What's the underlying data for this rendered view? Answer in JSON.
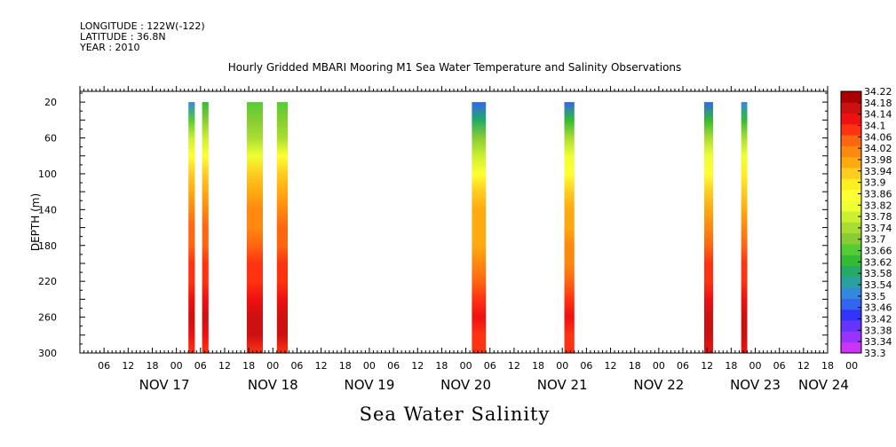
{
  "header": {
    "longitude": "LONGITUDE : 122W(-122)",
    "latitude": "LATITUDE : 36.8N",
    "year": "YEAR : 2010"
  },
  "title": "Hourly Gridded MBARI Mooring M1 Sea Water Temperature and Salinity Observations",
  "bottom_title": "Sea Water Salinity",
  "chart_data": {
    "type": "heatmap",
    "variable": "Sea Water Salinity",
    "ylabel": "DEPTH (m)",
    "ylim": [
      300,
      8
    ],
    "yticks": [
      20,
      60,
      100,
      140,
      180,
      220,
      260,
      300
    ],
    "xlim_hours": [
      0,
      186
    ],
    "hour_tick_labels": [
      "06",
      "12",
      "18",
      "00",
      "06",
      "12",
      "18",
      "00",
      "06",
      "12",
      "18",
      "00",
      "06",
      "12",
      "18",
      "00",
      "06",
      "12",
      "18",
      "00",
      "06",
      "12",
      "18",
      "00",
      "06",
      "12",
      "18",
      "00",
      "06",
      "12",
      "18",
      "00"
    ],
    "day_labels": [
      "NOV 17",
      "NOV 18",
      "NOV 19",
      "NOV 20",
      "NOV 21",
      "NOV 22",
      "NOV 23",
      "NOV 24"
    ],
    "colorbar": {
      "levels": [
        33.3,
        33.34,
        33.38,
        33.42,
        33.46,
        33.5,
        33.54,
        33.58,
        33.62,
        33.66,
        33.7,
        33.74,
        33.78,
        33.82,
        33.86,
        33.9,
        33.94,
        33.98,
        34.02,
        34.06,
        34.1,
        34.14,
        34.18,
        34.22
      ],
      "labels": [
        "33.3",
        "33.34",
        "33.38",
        "33.42",
        "33.46",
        "33.5",
        "33.54",
        "33.58",
        "33.62",
        "33.66",
        "33.7",
        "33.74",
        "33.78",
        "33.82",
        "33.86",
        "33.9",
        "33.94",
        "33.98",
        "34.02",
        "34.06",
        "34.1",
        "34.14",
        "34.18",
        "34.22"
      ],
      "colors": [
        "#cc33ff",
        "#9933ff",
        "#6633ff",
        "#3333ff",
        "#3366ee",
        "#3388dd",
        "#2aa0a0",
        "#22aa66",
        "#33bb33",
        "#55cc33",
        "#88cc33",
        "#aadd33",
        "#ccee33",
        "#eeff33",
        "#ffff33",
        "#ffee22",
        "#ffcc22",
        "#ffaa11",
        "#ff8811",
        "#ff6611",
        "#ff3311",
        "#ee1111",
        "#cc1111",
        "#aa0000"
      ]
    },
    "profile_depths": [
      20,
      40,
      60,
      80,
      100,
      120,
      140,
      160,
      180,
      200,
      220,
      240,
      260,
      280,
      300
    ],
    "columns": [
      {
        "start_hour": 27,
        "end_hour": 28.6,
        "values": [
          33.5,
          33.66,
          33.78,
          33.86,
          33.94,
          34.0,
          34.04,
          34.06,
          34.08,
          34.1,
          34.12,
          34.14,
          34.18,
          34.16,
          34.12
        ]
      },
      {
        "start_hour": 30.4,
        "end_hour": 32,
        "values": [
          33.62,
          33.7,
          33.78,
          33.86,
          33.94,
          34.0,
          34.04,
          34.06,
          34.08,
          34.1,
          34.12,
          34.14,
          34.18,
          34.16,
          34.12
        ]
      },
      {
        "start_hour": 41.5,
        "end_hour": 45.5,
        "values": [
          33.66,
          33.7,
          33.76,
          33.84,
          33.94,
          34.0,
          34.02,
          34.04,
          34.06,
          34.1,
          34.12,
          34.16,
          34.2,
          34.18,
          34.12
        ]
      },
      {
        "start_hour": 49,
        "end_hour": 51.7,
        "values": [
          33.66,
          33.7,
          33.76,
          33.86,
          33.94,
          34.0,
          34.04,
          34.06,
          34.08,
          34.1,
          34.12,
          34.16,
          34.2,
          34.18,
          34.12
        ]
      },
      {
        "start_hour": 97.5,
        "end_hour": 101,
        "values": [
          33.46,
          33.6,
          33.7,
          33.78,
          33.86,
          33.94,
          33.98,
          34.0,
          34.0,
          34.02,
          34.06,
          34.1,
          34.14,
          34.12,
          34.1
        ]
      },
      {
        "start_hour": 120.5,
        "end_hour": 123,
        "values": [
          33.46,
          33.64,
          33.74,
          33.82,
          33.88,
          33.94,
          33.98,
          34.0,
          34.02,
          34.04,
          34.06,
          34.1,
          34.14,
          34.12,
          34.1
        ]
      },
      {
        "start_hour": 155.3,
        "end_hour": 157.5,
        "values": [
          33.46,
          33.64,
          33.74,
          33.82,
          33.88,
          33.94,
          33.98,
          34.02,
          34.06,
          34.1,
          34.12,
          34.16,
          34.2,
          34.18,
          34.14
        ]
      },
      {
        "start_hour": 164.5,
        "end_hour": 166,
        "values": [
          33.5,
          33.64,
          33.74,
          33.82,
          33.9,
          33.96,
          34.0,
          34.04,
          34.06,
          34.1,
          34.12,
          34.16,
          34.2,
          34.18,
          34.14
        ]
      }
    ]
  }
}
